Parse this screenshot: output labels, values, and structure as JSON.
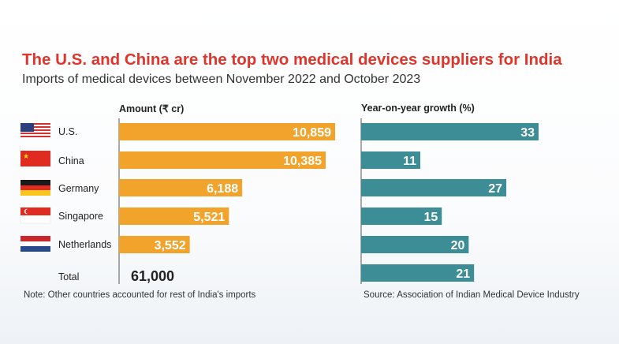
{
  "title": "The U.S. and China are the top two medical devices suppliers for India",
  "subtitle": "Imports of medical devices between November 2022 and October 2023",
  "note": "Note: Other countries accounted for rest of India's imports",
  "source": "Source: Association of Indian Medical Device Industry",
  "colors": {
    "title": "#e0352b",
    "amount_bar": "#f2a32b",
    "growth_bar": "#3d8d97"
  },
  "chart_data": [
    {
      "type": "bar",
      "title": "Amount (₹ cr)",
      "categories": [
        "U.S.",
        "China",
        "Germany",
        "Singapore",
        "Netherlands"
      ],
      "values": [
        10859,
        10385,
        6188,
        5521,
        3552
      ],
      "value_labels": [
        "10,859",
        "10,385",
        "6,188",
        "5,521",
        "3,552"
      ],
      "total_label": "Total",
      "total_value": "61,000"
    },
    {
      "type": "bar",
      "title": "Year-on-year growth (%)",
      "categories": [
        "U.S.",
        "China",
        "Germany",
        "Singapore",
        "Netherlands",
        "Total"
      ],
      "values": [
        33,
        11,
        27,
        15,
        20,
        21
      ],
      "value_labels": [
        "33",
        "11",
        "27",
        "15",
        "20",
        "21"
      ]
    }
  ],
  "flags": [
    "us-flag-icon",
    "china-flag-icon",
    "germany-flag-icon",
    "singapore-flag-icon",
    "netherlands-flag-icon"
  ]
}
